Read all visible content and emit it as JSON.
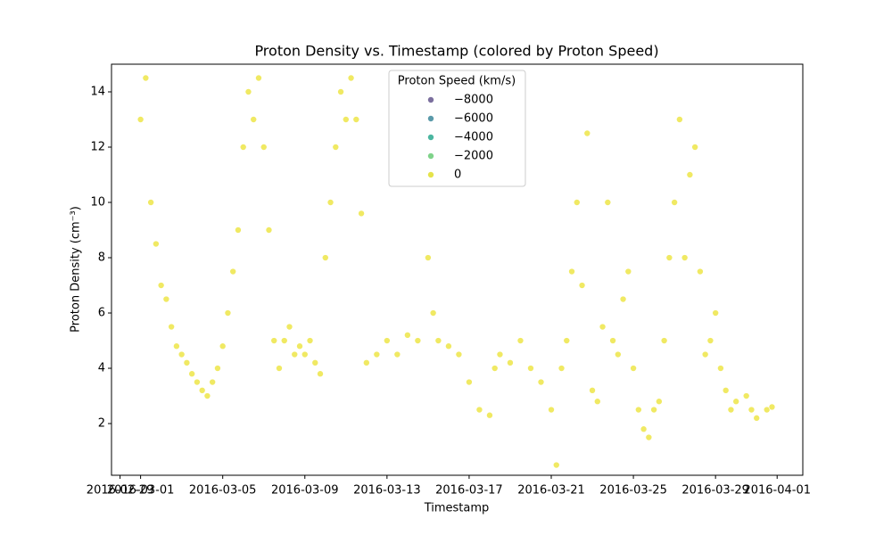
{
  "chart_data": {
    "type": "scatter",
    "title": "Proton Density vs. Timestamp (colored by Proton Speed)",
    "x_label": "Timestamp",
    "y_label": "Proton Density (cm⁻³)",
    "xlim": [
      "2016-02-28T14:00",
      "2016-04-02T06:00"
    ],
    "ylim": [
      0.13,
      15
    ],
    "xticks": [
      "2016-02-29",
      "2016-03-01",
      "2016-03-05",
      "2016-03-09",
      "2016-03-13",
      "2016-03-17",
      "2016-03-21",
      "2016-03-25",
      "2016-03-29",
      "2016-04-01"
    ],
    "yticks": [
      2,
      4,
      6,
      8,
      10,
      12,
      14
    ],
    "hue_legend": {
      "title": "Proton Speed (km/s)",
      "levels": [
        {
          "value": -8000,
          "label": "−8000"
        },
        {
          "value": -6000,
          "label": "−6000"
        },
        {
          "value": -4000,
          "label": "−4000"
        },
        {
          "value": -2000,
          "label": "−2000"
        },
        {
          "value": 0,
          "label": "0"
        }
      ],
      "colors": [
        "#7b6f9e",
        "#5a9aaa",
        "#4bb6a0",
        "#7fd38a",
        "#e5e34a"
      ]
    },
    "series": [
      {
        "color": "#ece43c",
        "x": [
          "2016-03-01T00:00",
          "2016-03-01T06:00",
          "2016-03-01T12:00",
          "2016-03-01T18:00",
          "2016-03-02T00:00",
          "2016-03-02T06:00",
          "2016-03-02T12:00",
          "2016-03-02T18:00",
          "2016-03-03T00:00",
          "2016-03-03T06:00",
          "2016-03-03T12:00",
          "2016-03-03T18:00",
          "2016-03-04T00:00",
          "2016-03-04T06:00",
          "2016-03-04T12:00",
          "2016-03-04T18:00",
          "2016-03-05T00:00",
          "2016-03-05T06:00",
          "2016-03-05T12:00",
          "2016-03-05T18:00",
          "2016-03-06T00:00",
          "2016-03-06T06:00",
          "2016-03-06T12:00",
          "2016-03-06T18:00",
          "2016-03-07T00:00",
          "2016-03-07T06:00",
          "2016-03-07T12:00",
          "2016-03-07T18:00",
          "2016-03-08T00:00",
          "2016-03-08T06:00",
          "2016-03-08T12:00",
          "2016-03-08T18:00",
          "2016-03-09T00:00",
          "2016-03-09T06:00",
          "2016-03-09T12:00",
          "2016-03-09T18:00",
          "2016-03-10T00:00",
          "2016-03-10T06:00",
          "2016-03-10T12:00",
          "2016-03-10T18:00",
          "2016-03-11T00:00",
          "2016-03-11T06:00",
          "2016-03-11T12:00",
          "2016-03-11T18:00",
          "2016-03-12T00:00",
          "2016-03-12T12:00",
          "2016-03-13T00:00",
          "2016-03-13T12:00",
          "2016-03-14T00:00",
          "2016-03-14T12:00",
          "2016-03-15T00:00",
          "2016-03-15T06:00",
          "2016-03-15T12:00",
          "2016-03-16T00:00",
          "2016-03-16T12:00",
          "2016-03-17T00:00",
          "2016-03-17T12:00",
          "2016-03-18T00:00",
          "2016-03-18T06:00",
          "2016-03-18T12:00",
          "2016-03-19T00:00",
          "2016-03-19T12:00",
          "2016-03-20T00:00",
          "2016-03-20T12:00",
          "2016-03-21T00:00",
          "2016-03-21T06:00",
          "2016-03-21T12:00",
          "2016-03-21T18:00",
          "2016-03-22T00:00",
          "2016-03-22T06:00",
          "2016-03-22T12:00",
          "2016-03-22T18:00",
          "2016-03-23T00:00",
          "2016-03-23T06:00",
          "2016-03-23T12:00",
          "2016-03-23T18:00",
          "2016-03-24T00:00",
          "2016-03-24T06:00",
          "2016-03-24T12:00",
          "2016-03-24T18:00",
          "2016-03-25T00:00",
          "2016-03-25T06:00",
          "2016-03-25T12:00",
          "2016-03-25T18:00",
          "2016-03-26T00:00",
          "2016-03-26T06:00",
          "2016-03-26T12:00",
          "2016-03-26T18:00",
          "2016-03-27T00:00",
          "2016-03-27T06:00",
          "2016-03-27T12:00",
          "2016-03-27T18:00",
          "2016-03-28T00:00",
          "2016-03-28T06:00",
          "2016-03-28T12:00",
          "2016-03-28T18:00",
          "2016-03-29T00:00",
          "2016-03-29T06:00",
          "2016-03-29T12:00",
          "2016-03-29T18:00",
          "2016-03-30T00:00",
          "2016-03-30T12:00",
          "2016-03-30T18:00",
          "2016-03-31T00:00",
          "2016-03-31T12:00",
          "2016-03-31T18:00"
        ],
        "values": [
          13,
          14.5,
          10,
          8.5,
          7,
          6.5,
          5.5,
          4.8,
          4.5,
          4.2,
          3.8,
          3.5,
          3.2,
          3,
          3.5,
          4,
          4.8,
          6,
          7.5,
          9,
          12,
          14,
          13,
          14.5,
          12,
          9,
          5,
          4,
          5,
          5.5,
          4.5,
          4.8,
          4.5,
          5,
          4.2,
          3.8,
          8,
          10,
          12,
          14,
          13,
          14.5,
          13,
          9.6,
          4.2,
          4.5,
          5,
          4.5,
          5.2,
          5,
          8,
          6,
          5,
          4.8,
          4.5,
          3.5,
          2.5,
          2.3,
          4,
          4.5,
          4.2,
          5,
          4,
          3.5,
          2.5,
          0.5,
          4,
          5,
          7.5,
          10,
          7,
          12.5,
          3.2,
          2.8,
          5.5,
          10,
          5,
          4.5,
          6.5,
          7.5,
          4,
          2.5,
          1.8,
          1.5,
          2.5,
          2.8,
          5,
          8,
          10,
          13,
          8,
          11,
          12,
          7.5,
          4.5,
          5,
          6,
          4,
          3.2,
          2.5,
          2.8,
          3,
          2.5,
          2.2,
          2.5,
          2.6
        ]
      }
    ]
  }
}
